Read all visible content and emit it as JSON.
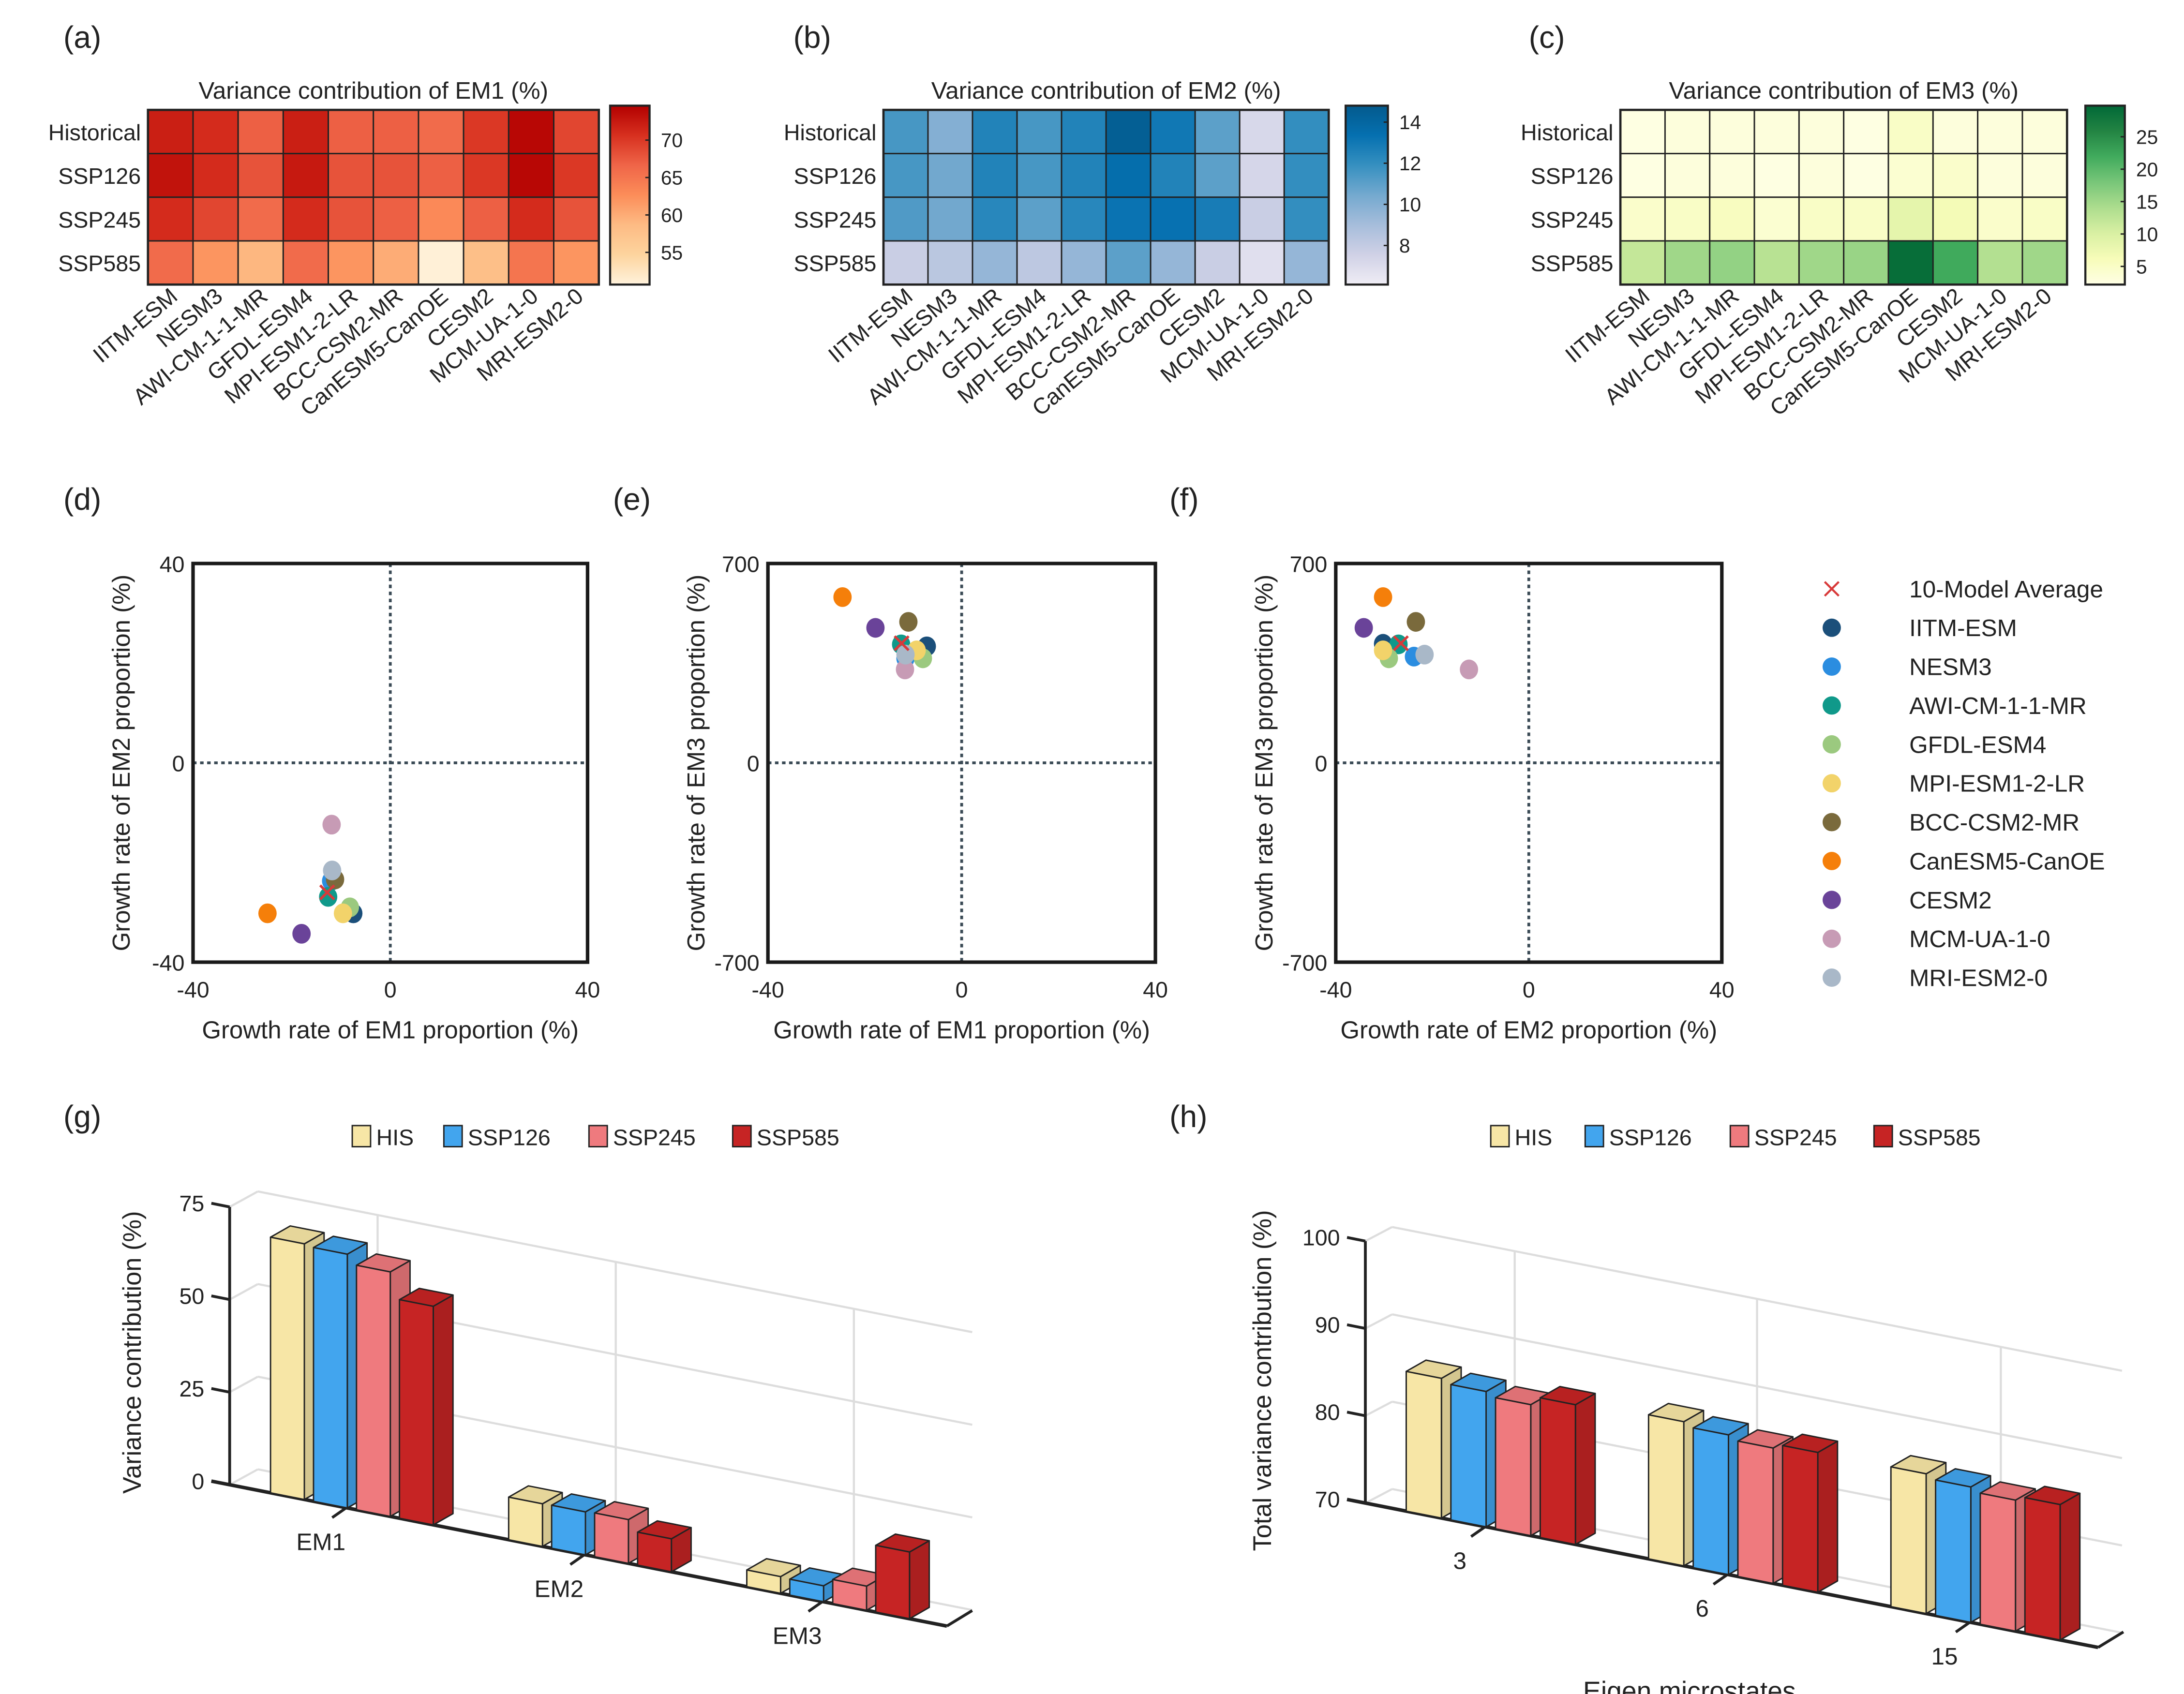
{
  "panel_labels": [
    "(a)",
    "(b)",
    "(c)",
    "(d)",
    "(e)",
    "(f)",
    "(g)",
    "(h)"
  ],
  "chart_data": [
    {
      "type": "heatmap",
      "title": "Variance contribution of EM1 (%)",
      "rows": [
        "Historical",
        "SSP126",
        "SSP245",
        "SSP585"
      ],
      "columns": [
        "IITM-ESM",
        "NESM3",
        "AWI-CM-1-1-MR",
        "GFDL-ESM4",
        "MPI-ESM1-2-LR",
        "BCC-CSM2-MR",
        "CanESM5-CanOE",
        "CESM2",
        "MCM-UA-1-0",
        "MRI-ESM2-0"
      ],
      "values": [
        [
          72,
          71,
          67,
          72,
          67,
          67,
          66,
          70,
          74,
          69
        ],
        [
          73,
          71,
          68,
          72.5,
          68,
          68,
          67,
          70,
          74,
          70
        ],
        [
          71,
          69,
          66,
          71,
          68,
          67,
          63,
          67,
          71,
          68
        ],
        [
          66,
          62,
          59,
          66,
          62,
          60,
          51,
          58,
          65,
          62
        ]
      ],
      "colorbar_range": [
        50.7,
        74.6
      ],
      "colorbar_ticks": [
        "55",
        "60",
        "65",
        "70"
      ],
      "colormap": [
        "#fff2dc",
        "#fdd49e",
        "#fdbb84",
        "#fc8d59",
        "#ef6548",
        "#d7301f",
        "#b30000"
      ]
    },
    {
      "type": "heatmap",
      "title": "Variance contribution of EM2 (%)",
      "rows": [
        "Historical",
        "SSP126",
        "SSP245",
        "SSP585"
      ],
      "columns": [
        "IITM-ESM",
        "NESM3",
        "AWI-CM-1-1-MR",
        "GFDL-ESM4",
        "MPI-ESM1-2-LR",
        "BCC-CSM2-MR",
        "CanESM5-CanOE",
        "CESM2",
        "MCM-UA-1-0",
        "MRI-ESM2-0"
      ],
      "values": [
        [
          11.5,
          10,
          12.5,
          11.5,
          12.5,
          14.5,
          13,
          11,
          7.2,
          12
        ],
        [
          11.5,
          10.5,
          12.5,
          11.5,
          12.5,
          13.5,
          12.5,
          11,
          7.3,
          12
        ],
        [
          11.3,
          10.5,
          12.3,
          11,
          12.3,
          13.2,
          13.3,
          12.8,
          7.8,
          12
        ],
        [
          7.8,
          8.3,
          9.5,
          8.2,
          9.5,
          11,
          9.5,
          7.8,
          6.8,
          9.5
        ]
      ],
      "colorbar_range": [
        6.1,
        14.8
      ],
      "colorbar_ticks": [
        "8",
        "10",
        "12",
        "14"
      ],
      "colormap": [
        "#efedf5",
        "#d0d1e6",
        "#a6bddb",
        "#74a9cf",
        "#3690c0",
        "#0570b0",
        "#045a8d"
      ]
    },
    {
      "type": "heatmap",
      "title": "Variance contribution of EM3 (%)",
      "rows": [
        "Historical",
        "SSP126",
        "SSP245",
        "SSP585"
      ],
      "columns": [
        "IITM-ESM",
        "NESM3",
        "AWI-CM-1-1-MR",
        "GFDL-ESM4",
        "MPI-ESM1-2-LR",
        "BCC-CSM2-MR",
        "CanESM5-CanOE",
        "CESM2",
        "MCM-UA-1-0",
        "MRI-ESM2-0"
      ],
      "values": [
        [
          2.5,
          3,
          3,
          3,
          3,
          2.5,
          5,
          3,
          3,
          3
        ],
        [
          2.5,
          3,
          3,
          2.5,
          3,
          2.5,
          4,
          4.5,
          3,
          3
        ],
        [
          4.5,
          5,
          5.5,
          4,
          5,
          5,
          8.5,
          6.5,
          4.5,
          5
        ],
        [
          12,
          15,
          16,
          13,
          15,
          15.5,
          29,
          22,
          13.5,
          15
        ]
      ],
      "colorbar_range": [
        2.2,
        29.8
      ],
      "colorbar_ticks": [
        "5",
        "10",
        "15",
        "20",
        "25"
      ],
      "colormap": [
        "#ffffe5",
        "#f7fcb9",
        "#d9f0a3",
        "#addd8e",
        "#78c679",
        "#41ab5d",
        "#238443",
        "#006837"
      ]
    },
    {
      "type": "scatter",
      "xlabel": "Growth rate of EM1 proportion (%)",
      "ylabel": "Growth rate of EM2 proportion (%)",
      "xlim": [
        -40,
        40
      ],
      "ylim": [
        -40,
        40
      ],
      "x_ticks": [
        "-40",
        "0",
        "40"
      ],
      "y_ticks": [
        "-40",
        "0",
        "40"
      ],
      "reference_lines": "dotted at x=0 and y=0",
      "average": {
        "name": "10-Model Average",
        "x": -12.8,
        "y": -26,
        "color": "#d83a3a",
        "marker": "x"
      },
      "series": [
        {
          "name": "IITM-ESM",
          "x": -7.5,
          "y": -30.2,
          "color": "#1b4f7a"
        },
        {
          "name": "NESM3",
          "x": -12,
          "y": -23.7,
          "color": "#2b8de0"
        },
        {
          "name": "AWI-CM-1-1-MR",
          "x": -12.6,
          "y": -26.9,
          "color": "#10998a"
        },
        {
          "name": "GFDL-ESM4",
          "x": -8.2,
          "y": -29,
          "color": "#9bc97f"
        },
        {
          "name": "MPI-ESM1-2-LR",
          "x": -9.6,
          "y": -30.2,
          "color": "#f2d36a"
        },
        {
          "name": "BCC-CSM2-MR",
          "x": -11.2,
          "y": -23.4,
          "color": "#7a6a3c"
        },
        {
          "name": "CanESM5-CanOE",
          "x": -24.9,
          "y": -30.2,
          "color": "#f57f0a"
        },
        {
          "name": "CESM2",
          "x": -18,
          "y": -34.3,
          "color": "#6a4399"
        },
        {
          "name": "MCM-UA-1-0",
          "x": -11.9,
          "y": -12.4,
          "color": "#c79bb5"
        },
        {
          "name": "MRI-ESM2-0",
          "x": -11.8,
          "y": -21.6,
          "color": "#a9b8c8"
        }
      ],
      "legend": "right"
    },
    {
      "type": "scatter",
      "xlabel": "Growth rate of EM1 proportion (%)",
      "ylabel": "Growth rate of EM3 proportion (%)",
      "xlim": [
        -40,
        40
      ],
      "ylim": [
        -700,
        700
      ],
      "x_ticks": [
        "-40",
        "0",
        "40"
      ],
      "y_ticks": [
        "-700",
        "0",
        "700"
      ],
      "average": {
        "name": "10-Model Average",
        "x": -12.4,
        "y": 420,
        "color": "#d83a3a",
        "marker": "x"
      },
      "series": [
        {
          "name": "IITM-ESM",
          "x": -7.2,
          "y": 409,
          "color": "#1b4f7a"
        },
        {
          "name": "NESM3",
          "x": -11.6,
          "y": 367,
          "color": "#2b8de0"
        },
        {
          "name": "AWI-CM-1-1-MR",
          "x": -12.5,
          "y": 416,
          "color": "#10998a"
        },
        {
          "name": "GFDL-ESM4",
          "x": -8,
          "y": 367,
          "color": "#9bc97f"
        },
        {
          "name": "MPI-ESM1-2-LR",
          "x": -9.3,
          "y": 395,
          "color": "#f2d36a"
        },
        {
          "name": "BCC-CSM2-MR",
          "x": -11,
          "y": 495,
          "color": "#7a6a3c"
        },
        {
          "name": "CanESM5-CanOE",
          "x": -24.6,
          "y": 582,
          "color": "#f57f0a"
        },
        {
          "name": "CESM2",
          "x": -17.8,
          "y": 474,
          "color": "#6a4399"
        },
        {
          "name": "MCM-UA-1-0",
          "x": -11.7,
          "y": 328,
          "color": "#c79bb5"
        },
        {
          "name": "MRI-ESM2-0",
          "x": -11.6,
          "y": 380,
          "color": "#a9b8c8"
        }
      ]
    },
    {
      "type": "scatter",
      "xlabel": "Growth rate of EM2 proportion (%)",
      "ylabel": "Growth rate of EM3 proportion (%)",
      "xlim": [
        -40,
        40
      ],
      "ylim": [
        -700,
        700
      ],
      "x_ticks": [
        "-40",
        "0",
        "40"
      ],
      "y_ticks": [
        "-700",
        "0",
        "700"
      ],
      "average": {
        "name": "10-Model Average",
        "x": -26.5,
        "y": 420,
        "color": "#d83a3a",
        "marker": "x"
      },
      "series": [
        {
          "name": "IITM-ESM",
          "x": -30.2,
          "y": 418,
          "color": "#1b4f7a"
        },
        {
          "name": "NESM3",
          "x": -23.8,
          "y": 373,
          "color": "#2b8de0"
        },
        {
          "name": "AWI-CM-1-1-MR",
          "x": -27,
          "y": 416,
          "color": "#10998a"
        },
        {
          "name": "GFDL-ESM4",
          "x": -29,
          "y": 367,
          "color": "#9bc97f"
        },
        {
          "name": "MPI-ESM1-2-LR",
          "x": -30.2,
          "y": 395,
          "color": "#f2d36a"
        },
        {
          "name": "BCC-CSM2-MR",
          "x": -23.4,
          "y": 495,
          "color": "#7a6a3c"
        },
        {
          "name": "CanESM5-CanOE",
          "x": -30.2,
          "y": 582,
          "color": "#f57f0a"
        },
        {
          "name": "CESM2",
          "x": -34.2,
          "y": 474,
          "color": "#6a4399"
        },
        {
          "name": "MCM-UA-1-0",
          "x": -12.4,
          "y": 328,
          "color": "#c79bb5"
        },
        {
          "name": "MRI-ESM2-0",
          "x": -21.6,
          "y": 380,
          "color": "#a9b8c8"
        }
      ]
    },
    {
      "type": "bar",
      "style": "3d-grouped",
      "ylabel": "Variance contribution (%)",
      "ylim": [
        0,
        75
      ],
      "y_ticks": [
        "0",
        "25",
        "50",
        "75"
      ],
      "categories": [
        "EM1",
        "EM2",
        "EM3"
      ],
      "series": [
        {
          "name": "HIS",
          "values": [
            69,
            11.5,
            4.5
          ],
          "color": "#f7e6a6"
        },
        {
          "name": "SSP126",
          "values": [
            68.5,
            11.6,
            4.3
          ],
          "color": "#42a5ee"
        },
        {
          "name": "SSP245",
          "values": [
            66,
            11.8,
            6.5
          ],
          "color": "#ef7a7e"
        },
        {
          "name": "SSP585",
          "values": [
            59,
            8.9,
            18
          ],
          "color": "#c62424"
        }
      ],
      "legend": "top"
    },
    {
      "type": "bar",
      "style": "3d-grouped",
      "xlabel": "Eigen microstates",
      "ylabel": "Total variance contribution (%)",
      "ylim": [
        70,
        100
      ],
      "y_ticks": [
        "70",
        "80",
        "90",
        "100"
      ],
      "categories": [
        "3",
        "6",
        "15"
      ],
      "series": [
        {
          "name": "HIS",
          "values": [
            86,
            86.5,
            86
          ],
          "color": "#f7e6a6"
        },
        {
          "name": "SSP126",
          "values": [
            85.5,
            86,
            85.5
          ],
          "color": "#42a5ee"
        },
        {
          "name": "SSP245",
          "values": [
            85,
            85.5,
            85
          ],
          "color": "#ef7a7e"
        },
        {
          "name": "SSP585",
          "values": [
            86,
            86,
            85.5
          ],
          "color": "#c62424"
        }
      ],
      "legend": "top"
    }
  ]
}
